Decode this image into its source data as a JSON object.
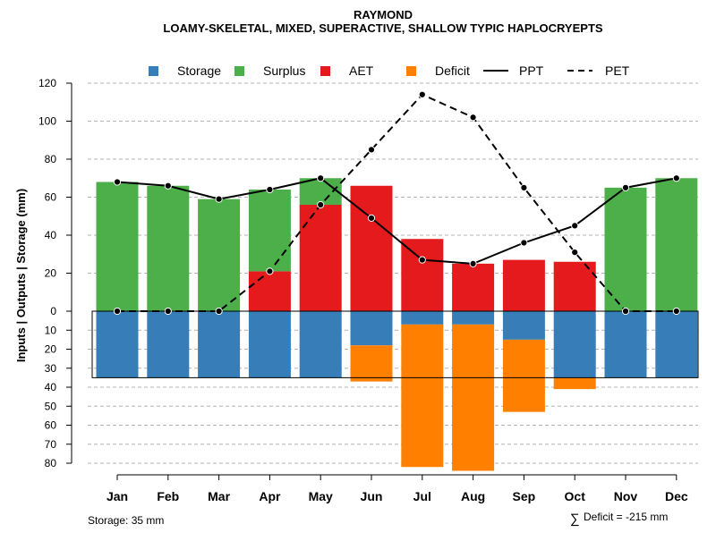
{
  "chart_data": {
    "type": "bar",
    "title": "RAYMOND",
    "subtitle": "LOAMY-SKELETAL, MIXED, SUPERACTIVE, SHALLOW TYPIC HAPLOCRYEPTS",
    "ylabel": "Inputs | Outputs | Storage    (mm)",
    "categories": [
      "Jan",
      "Feb",
      "Mar",
      "Apr",
      "May",
      "Jun",
      "Jul",
      "Aug",
      "Sep",
      "Oct",
      "Nov",
      "Dec"
    ],
    "upper_ticks": [
      0,
      20,
      40,
      60,
      80,
      100,
      120
    ],
    "lower_ticks": [
      10,
      20,
      30,
      40,
      50,
      60,
      70,
      80
    ],
    "upper_ylim": [
      0,
      120
    ],
    "lower_ylim": [
      0,
      80
    ],
    "storage_box_depth": 35,
    "legend": [
      {
        "label": "Storage",
        "color": "#377eb8",
        "kind": "box"
      },
      {
        "label": "Surplus",
        "color": "#4daf4a",
        "kind": "box"
      },
      {
        "label": "AET",
        "color": "#e41a1c",
        "kind": "box"
      },
      {
        "label": "Deficit",
        "color": "#ff7f00",
        "kind": "box"
      },
      {
        "label": "PPT",
        "color": "#000000",
        "kind": "solid"
      },
      {
        "label": "PET",
        "color": "#000000",
        "kind": "dashed"
      }
    ],
    "series": [
      {
        "name": "AET",
        "values": [
          0,
          0,
          0,
          21,
          56,
          66,
          38,
          25,
          27,
          26,
          0,
          0
        ]
      },
      {
        "name": "Surplus",
        "values": [
          68,
          66,
          59,
          43,
          14,
          0,
          0,
          0,
          0,
          0,
          65,
          70
        ]
      },
      {
        "name": "Storage",
        "values": [
          35,
          35,
          35,
          35,
          35,
          18,
          7,
          7,
          15,
          35,
          35,
          35
        ]
      },
      {
        "name": "Deficit",
        "values": [
          0,
          0,
          0,
          0,
          0,
          19,
          75,
          77,
          38,
          6,
          0,
          0
        ]
      },
      {
        "name": "PPT",
        "values": [
          68,
          66,
          59,
          64,
          70,
          49,
          27,
          25,
          36,
          45,
          65,
          70
        ]
      },
      {
        "name": "PET",
        "values": [
          0,
          0,
          0,
          21,
          56,
          85,
          114,
          102,
          65,
          31,
          0,
          0
        ]
      }
    ],
    "colors": {
      "storage": "#377eb8",
      "surplus": "#4daf4a",
      "aet": "#e41a1c",
      "deficit": "#ff7f00",
      "line": "#000000",
      "grid": "#b3b3b3"
    }
  },
  "footer": {
    "storage_note": "Storage: 35 mm",
    "deficit_symbol": "∑",
    "deficit_note": "Deficit = -215 mm"
  }
}
